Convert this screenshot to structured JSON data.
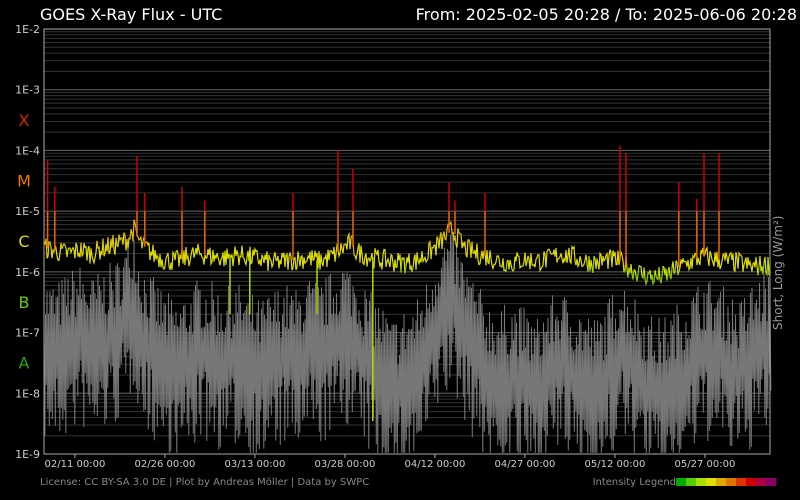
{
  "header": {
    "title": "GOES X-Ray Flux - UTC",
    "range": "From: 2025-02-05 20:28  /  To: 2025-06-06 20:28"
  },
  "side_label": "Short, Long (W/m²)",
  "footer": {
    "credits": "License: CC BY-SA 3.0 DE | Plot by Andreas Möller | Data by SWPC",
    "legend_label": "Intensity Legend",
    "legend_colors": [
      "#00aa00",
      "#55cc00",
      "#aadd00",
      "#dddd00",
      "#ddaa00",
      "#dd7700",
      "#dd3300",
      "#cc0000",
      "#aa0044",
      "#880066"
    ]
  },
  "flare_classes": [
    {
      "label": "X",
      "color": "#dd2200",
      "exp": -4
    },
    {
      "label": "M",
      "color": "#ee7700",
      "exp": -5
    },
    {
      "label": "C",
      "color": "#dddd00",
      "exp": -6
    },
    {
      "label": "B",
      "color": "#66cc00",
      "exp": -7
    },
    {
      "label": "A",
      "color": "#22aa00",
      "exp": -8
    }
  ],
  "chart_data": {
    "type": "line",
    "title": "GOES X-Ray Flux - UTC",
    "ylabel": "Short, Long (W/m²)",
    "y_scale": "log",
    "ylim": [
      1e-09,
      0.01
    ],
    "yticks": [
      "1E-2",
      "1E-3",
      "1E-4",
      "1E-5",
      "1E-6",
      "1E-7",
      "1E-8",
      "1E-9"
    ],
    "xlim": [
      "2025-02-05 20:28",
      "2025-06-06 20:28"
    ],
    "xticks": [
      "02/11 00:00",
      "02/26 00:00",
      "03/13 00:00",
      "03/28 00:00",
      "04/12 00:00",
      "04/27 00:00",
      "05/12 00:00",
      "05/27 00:00"
    ],
    "xtick_days": [
      5.15,
      20.15,
      35.15,
      50.15,
      65.15,
      80.15,
      95.15,
      110.15
    ],
    "grid": true,
    "series": [
      {
        "name": "Long",
        "color": "#dddd00",
        "days": [
          0,
          2,
          4,
          6,
          8,
          10,
          12,
          14,
          15,
          16,
          17,
          18,
          20,
          22,
          24,
          26,
          28,
          30,
          32,
          34,
          36,
          38,
          40,
          42,
          44,
          46,
          48,
          50,
          51,
          52,
          54,
          56,
          58,
          60,
          62,
          64,
          66,
          68,
          70,
          72,
          74,
          76,
          78,
          80,
          82,
          84,
          86,
          88,
          90,
          92,
          94,
          96,
          98,
          100,
          102,
          104,
          106,
          108,
          110,
          112,
          114,
          116,
          118,
          120
        ],
        "values": [
          2.5e-06,
          2.2e-06,
          2e-06,
          2.3e-06,
          2e-06,
          2.5e-06,
          2.8e-06,
          3.5e-06,
          5e-06,
          3e-06,
          2.5e-06,
          2e-06,
          1.6e-06,
          1.5e-06,
          1.8e-06,
          2e-06,
          1.8e-06,
          1.7e-06,
          1.9e-06,
          1.8e-06,
          1.6e-06,
          1.4e-06,
          1.5e-06,
          1.6e-06,
          1.7e-06,
          1.5e-06,
          1.8e-06,
          2.5e-06,
          3e-06,
          2.2e-06,
          1.8e-06,
          1.6e-06,
          1.5e-06,
          1.4e-06,
          1.5e-06,
          2e-06,
          3e-06,
          5e-06,
          2.5e-06,
          2e-06,
          1.8e-06,
          1.5e-06,
          1.4e-06,
          1.6e-06,
          1.5e-06,
          1.6e-06,
          2e-06,
          1.8e-06,
          1.5e-06,
          1.4e-06,
          1.6e-06,
          1.5e-06,
          1.1e-06,
          9e-07,
          8e-07,
          9e-07,
          1.2e-06,
          1.5e-06,
          1.8e-06,
          1.6e-06,
          1.5e-06,
          1.4e-06,
          1.2e-06,
          1.3e-06
        ]
      },
      {
        "name": "Short",
        "color": "#777777",
        "days": [
          0,
          2,
          4,
          6,
          8,
          10,
          12,
          14,
          15,
          16,
          18,
          20,
          22,
          24,
          26,
          28,
          30,
          32,
          34,
          36,
          38,
          40,
          42,
          44,
          46,
          48,
          50,
          52,
          54,
          56,
          58,
          60,
          62,
          64,
          66,
          68,
          70,
          72,
          74,
          76,
          78,
          80,
          82,
          84,
          86,
          88,
          90,
          92,
          94,
          96,
          98,
          100,
          102,
          104,
          106,
          108,
          110,
          112,
          114,
          116,
          118,
          120
        ],
        "values": [
          5e-08,
          4e-08,
          6e-08,
          8e-08,
          5e-08,
          7e-08,
          9e-08,
          2e-07,
          4e-07,
          1e-07,
          5e-08,
          3e-08,
          2e-08,
          3e-08,
          5e-08,
          4e-08,
          3e-08,
          4e-08,
          3e-08,
          2e-08,
          3e-08,
          4e-08,
          3e-08,
          5e-08,
          4e-08,
          6e-08,
          1e-07,
          6e-08,
          3e-08,
          2e-08,
          1e-08,
          1.5e-08,
          2e-08,
          5e-08,
          2e-07,
          3e-07,
          1e-07,
          4e-08,
          2e-08,
          1.5e-08,
          2e-08,
          1.5e-08,
          1e-08,
          2e-08,
          3e-08,
          2e-08,
          1.5e-08,
          1e-08,
          2e-08,
          5e-08,
          3e-08,
          1.5e-08,
          1e-08,
          1.2e-08,
          2e-08,
          3e-08,
          5e-08,
          4e-08,
          3e-08,
          2e-08,
          4e-08,
          6e-08
        ]
      }
    ],
    "flares": [
      {
        "day": 0.6,
        "peak": 7e-05
      },
      {
        "day": 1.8,
        "peak": 2.5e-05
      },
      {
        "day": 15.5,
        "peak": 8e-05
      },
      {
        "day": 16.8,
        "peak": 2e-05
      },
      {
        "day": 23.0,
        "peak": 2.5e-05
      },
      {
        "day": 26.8,
        "peak": 1.5e-05
      },
      {
        "day": 41.5,
        "peak": 2e-05
      },
      {
        "day": 49.0,
        "peak": 0.0001
      },
      {
        "day": 51.5,
        "peak": 5e-05
      },
      {
        "day": 67.5,
        "peak": 3e-05
      },
      {
        "day": 68.5,
        "peak": 1.5e-05
      },
      {
        "day": 73.5,
        "peak": 2e-05
      },
      {
        "day": 96.0,
        "peak": 0.00012
      },
      {
        "day": 97.0,
        "peak": 9e-05
      },
      {
        "day": 105.8,
        "peak": 3e-05
      },
      {
        "day": 108.8,
        "peak": 1.6e-05
      },
      {
        "day": 110.0,
        "peak": 9e-05
      },
      {
        "day": 112.5,
        "peak": 9e-05
      }
    ],
    "dips": [
      {
        "day": 31.0,
        "low": 2e-07
      },
      {
        "day": 34.3,
        "low": 2e-07
      },
      {
        "day": 45.5,
        "low": 2e-07
      },
      {
        "day": 54.8,
        "low": 3.5e-09
      }
    ]
  }
}
